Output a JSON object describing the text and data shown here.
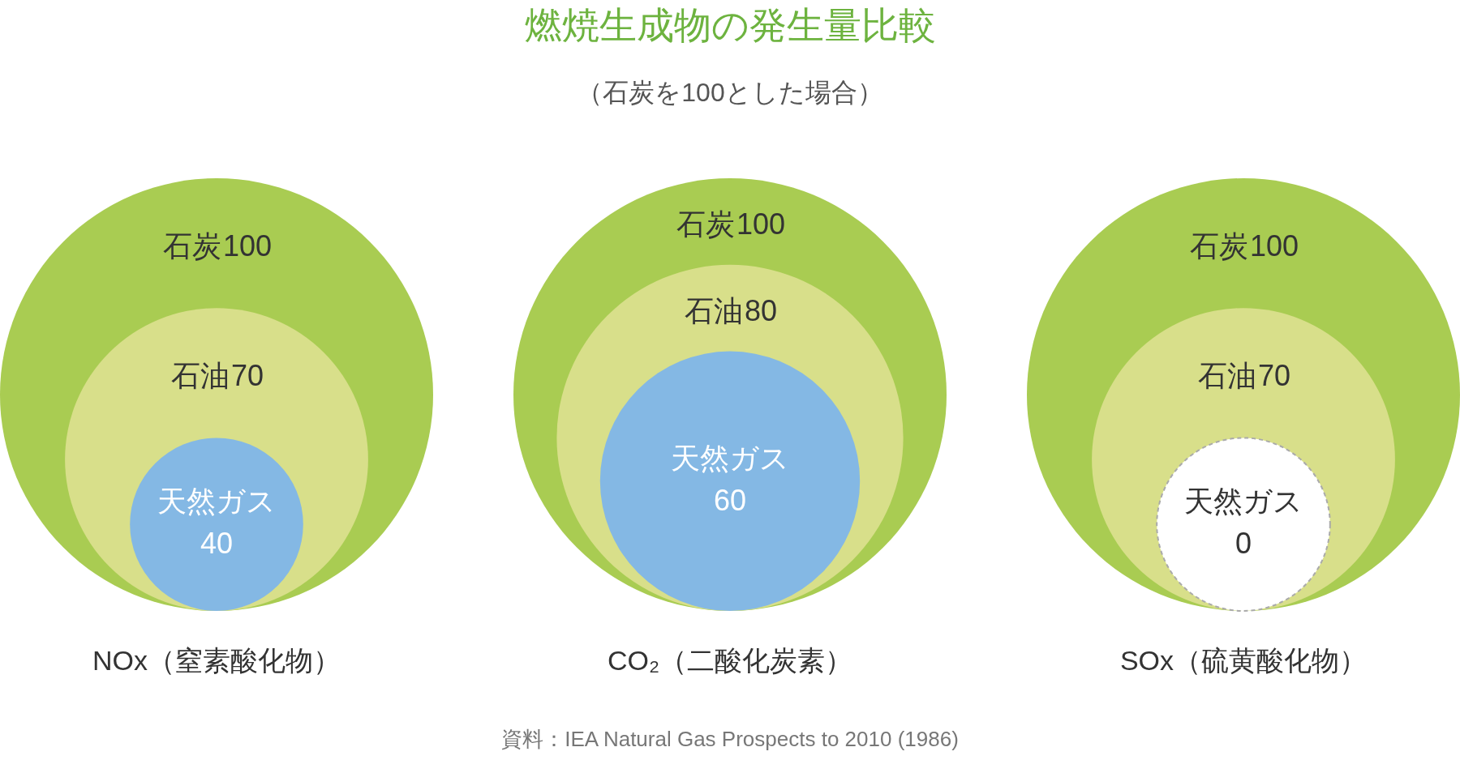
{
  "chart_data": {
    "type": "other",
    "title": "燃焼生成物の発生量比較",
    "subtitle": "（石炭を100とした場合）",
    "categories": [
      "石炭",
      "石油",
      "天然ガス"
    ],
    "series": [
      {
        "name": "NOx（窒素酸化物）",
        "values": [
          100,
          70,
          40
        ],
        "colors": [
          "#a9cc52",
          "#d8df8a",
          "#84b8e4"
        ]
      },
      {
        "name": "CO₂（二酸化炭素）",
        "values": [
          100,
          80,
          60
        ],
        "colors": [
          "#a9cc52",
          "#d8df8a",
          "#84b8e4"
        ]
      },
      {
        "name": "SOx（硫黄酸化物）",
        "values": [
          100,
          70,
          0
        ],
        "colors": [
          "#a9cc52",
          "#d8df8a",
          "#ffffff"
        ]
      }
    ],
    "data_labels": true,
    "annotations": [
      "資料：IEA Natural Gas Prospects to 2010 (1986)"
    ]
  }
}
